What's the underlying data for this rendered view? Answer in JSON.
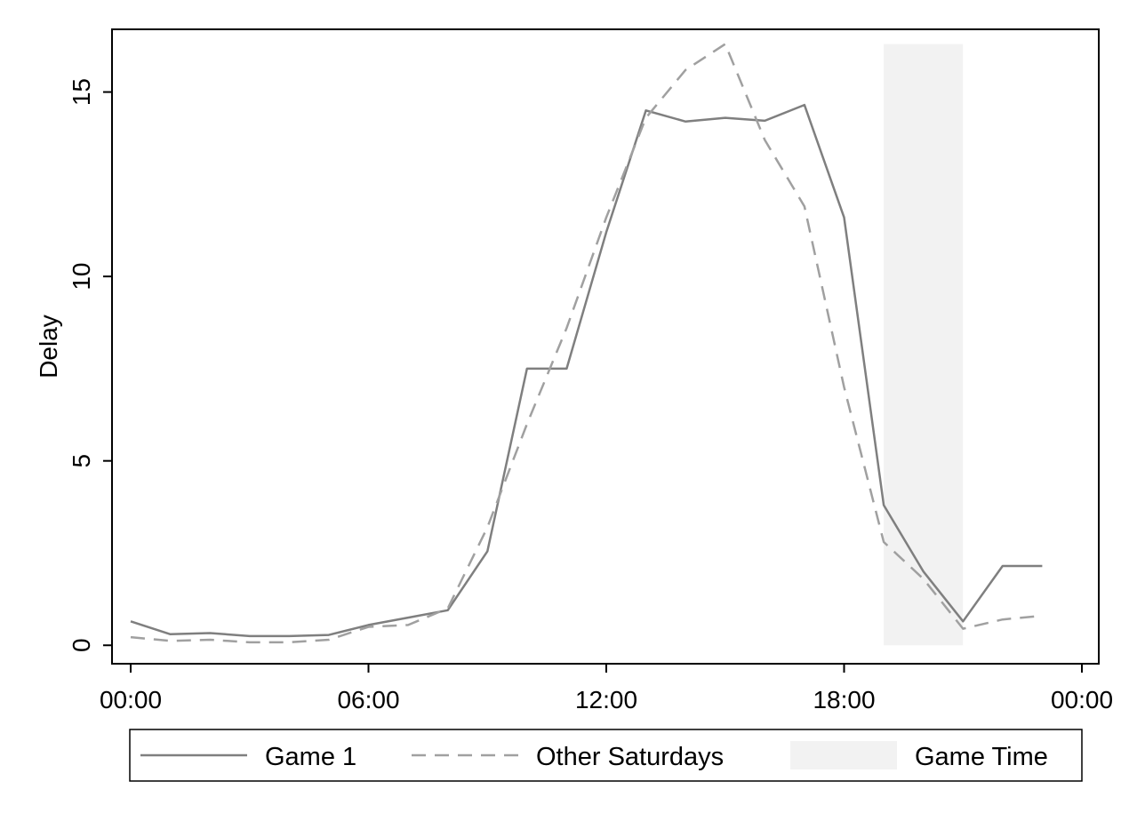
{
  "chart_data": {
    "type": "line",
    "ylabel": "Delay",
    "xlabel": "",
    "x_unit": "hour of day",
    "xlim": [
      0,
      24
    ],
    "ylim": [
      -0.5,
      16.7
    ],
    "x_ticks": [
      0,
      6,
      12,
      18,
      24
    ],
    "x_tick_labels": [
      "00:00",
      "06:00",
      "12:00",
      "18:00",
      "00:00"
    ],
    "y_ticks": [
      0,
      5,
      10,
      15
    ],
    "y_tick_labels": [
      "0",
      "5",
      "10",
      "15"
    ],
    "grid": false,
    "legend_position": "bottom",
    "series": [
      {
        "name": "Game 1",
        "style": "solid",
        "color": "#7f7f7f",
        "x": [
          0,
          1,
          2,
          3,
          4,
          5,
          6,
          7,
          8,
          9,
          10,
          11,
          12,
          13,
          14,
          15,
          16,
          17,
          18,
          19,
          20,
          21,
          22,
          23
        ],
        "values": [
          0.65,
          0.3,
          0.33,
          0.25,
          0.25,
          0.28,
          0.55,
          0.75,
          0.95,
          2.55,
          7.5,
          7.5,
          11.2,
          14.5,
          14.2,
          14.3,
          14.22,
          14.65,
          11.6,
          3.8,
          2.0,
          0.65,
          2.15,
          2.15
        ]
      },
      {
        "name": "Other Saturdays",
        "style": "dashed",
        "color": "#a0a0a0",
        "x": [
          0,
          1,
          2,
          3,
          4,
          5,
          6,
          7,
          8,
          9,
          10,
          11,
          12,
          13,
          14,
          15,
          16,
          17,
          18,
          19,
          20,
          21,
          22,
          23
        ],
        "values": [
          0.22,
          0.12,
          0.15,
          0.08,
          0.08,
          0.15,
          0.5,
          0.55,
          1.0,
          3.2,
          6.0,
          8.6,
          11.6,
          14.3,
          15.6,
          16.3,
          13.7,
          11.9,
          7.0,
          2.8,
          1.8,
          0.45,
          0.7,
          0.8
        ]
      }
    ],
    "shaded_region": {
      "name": "Game Time",
      "x_range": [
        19,
        21
      ],
      "y_range": [
        0,
        16.3
      ],
      "color": "#f2f2f2"
    }
  }
}
